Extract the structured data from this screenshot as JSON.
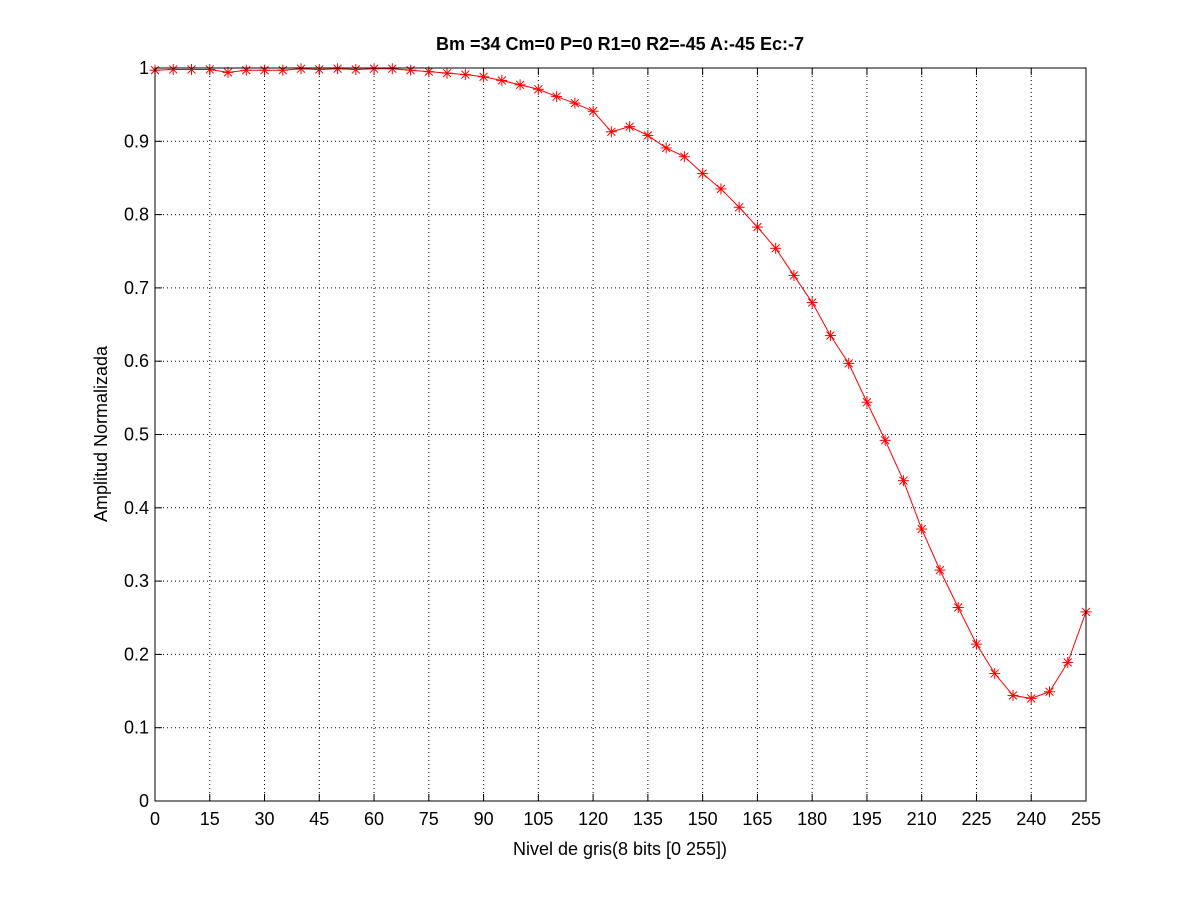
{
  "chart_data": {
    "type": "line",
    "title": "Bm =34  Cm=0  P=0  R1=0  R2=-45  A:-45  Ec:-7",
    "xlabel": "Nivel de gris(8 bits [0 255])",
    "ylabel": "Amplitud Normalizada",
    "xlim": [
      0,
      255
    ],
    "ylim": [
      0,
      1
    ],
    "xticks": [
      0,
      15,
      30,
      45,
      60,
      75,
      90,
      105,
      120,
      135,
      150,
      165,
      180,
      195,
      210,
      225,
      240,
      255
    ],
    "yticks": [
      0,
      0.1,
      0.2,
      0.3,
      0.4,
      0.5,
      0.6,
      0.7,
      0.8,
      0.9,
      1
    ],
    "xtick_labels": [
      "0",
      "15",
      "30",
      "45",
      "60",
      "75",
      "90",
      "105",
      "120",
      "135",
      "150",
      "165",
      "180",
      "195",
      "210",
      "225",
      "240",
      "255"
    ],
    "ytick_labels": [
      "0",
      "0.1",
      "0.2",
      "0.3",
      "0.4",
      "0.5",
      "0.6",
      "0.7",
      "0.8",
      "0.9",
      "1"
    ],
    "grid": true,
    "color": "#ff0000",
    "marker": "asterisk",
    "series": [
      {
        "x": [
          0,
          5,
          10,
          15,
          20,
          25,
          30,
          35,
          40,
          45,
          50,
          55,
          60,
          65,
          70,
          75,
          80,
          85,
          90,
          95,
          100,
          105,
          110,
          115,
          120,
          125,
          130,
          135,
          140,
          145,
          150,
          155,
          160,
          165,
          170,
          175,
          180,
          185,
          190,
          195,
          200,
          205,
          210,
          215,
          220,
          225,
          230,
          235,
          240,
          245,
          250,
          255
        ],
        "values": [
          0.997,
          0.998,
          0.998,
          0.998,
          0.994,
          0.997,
          0.997,
          0.997,
          0.999,
          0.998,
          0.999,
          0.998,
          0.999,
          0.999,
          0.997,
          0.995,
          0.993,
          0.991,
          0.988,
          0.983,
          0.977,
          0.971,
          0.961,
          0.952,
          0.941,
          0.913,
          0.92,
          0.908,
          0.891,
          0.879,
          0.856,
          0.835,
          0.81,
          0.783,
          0.754,
          0.717,
          0.68,
          0.635,
          0.597,
          0.544,
          0.492,
          0.437,
          0.371,
          0.315,
          0.264,
          0.214,
          0.174,
          0.144,
          0.14,
          0.149,
          0.189,
          0.258
        ]
      }
    ]
  }
}
